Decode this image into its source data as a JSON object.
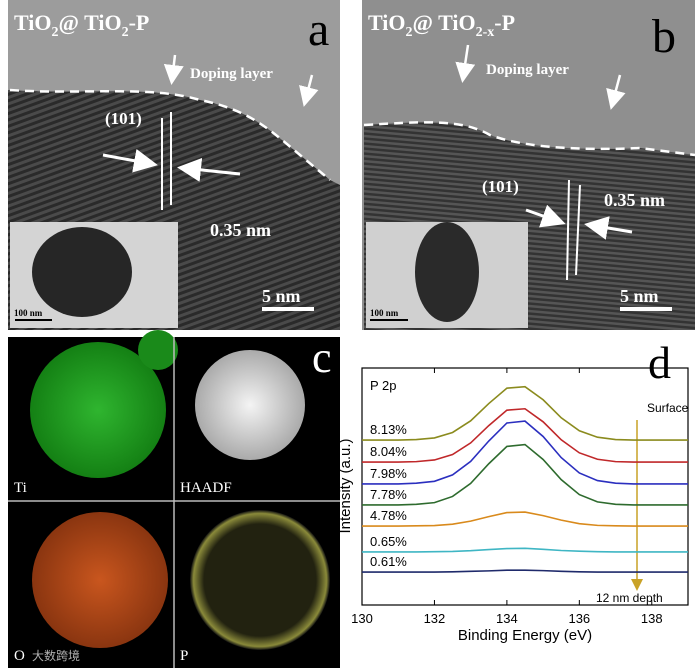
{
  "panel_a": {
    "letter": "a",
    "title_parts": [
      "TiO",
      "2",
      "@ TiO",
      "2",
      "-P"
    ],
    "annotation": "Doping layer",
    "plane": "(101)",
    "spacing": "0.35 nm",
    "scale_bar": "5 nm",
    "inset_scale_bar": "100 nm"
  },
  "panel_b": {
    "letter": "b",
    "title_parts": [
      "TiO",
      "2",
      "@ TiO",
      "2-x",
      "-P"
    ],
    "annotation": "Doping layer",
    "plane": "(101)",
    "spacing": "0.35 nm",
    "scale_bar": "5 nm",
    "inset_scale_bar": "100 nm"
  },
  "panel_c": {
    "letter": "c",
    "maps": [
      "Ti",
      "HAADF",
      "O",
      "P"
    ]
  },
  "chart_data": {
    "type": "line",
    "panel_label": "d",
    "spectrum_label": "P 2p",
    "annotations": [
      "Surface",
      "12 nm depth"
    ],
    "x_label": "Binding Energy (eV)",
    "y_label": "Intensity (a.u.)",
    "x": [
      130,
      130.5,
      131,
      131.5,
      132,
      132.5,
      133,
      133.5,
      134,
      134.5,
      135,
      135.5,
      136,
      136.5,
      137,
      137.5,
      138,
      138.5,
      139
    ],
    "xlim": [
      130,
      139
    ],
    "xticks": [
      130,
      132,
      134,
      136,
      138
    ],
    "ylim": [
      0,
      100
    ],
    "series": [
      {
        "name": "8.13%",
        "color": "#8b8b1e",
        "values": [
          69.6,
          69.6,
          69.6,
          69.8,
          70.5,
          72.8,
          77.7,
          85.0,
          91.5,
          92.1,
          86.6,
          79.0,
          73.5,
          70.8,
          69.8,
          69.6,
          69.6,
          69.6,
          69.6
        ]
      },
      {
        "name": "8.04%",
        "color": "#c0282a",
        "values": [
          60.3,
          60.3,
          60.3,
          60.5,
          61.2,
          63.5,
          68.4,
          75.7,
          82.2,
          82.8,
          77.3,
          69.7,
          64.2,
          61.5,
          60.5,
          60.3,
          60.3,
          60.3,
          60.3
        ]
      },
      {
        "name": "7.98%",
        "color": "#2b2fbf",
        "values": [
          51.1,
          51.1,
          51.1,
          51.4,
          52.2,
          54.9,
          60.6,
          69.2,
          76.8,
          77.6,
          71.1,
          62.2,
          55.7,
          52.5,
          51.4,
          51.1,
          51.1,
          51.1,
          51.1
        ]
      },
      {
        "name": "7.78%",
        "color": "#2e6b2e",
        "values": [
          42.2,
          42.2,
          42.2,
          42.5,
          43.2,
          45.8,
          51.3,
          59.6,
          66.9,
          67.7,
          61.4,
          52.9,
          46.6,
          43.5,
          42.5,
          42.2,
          42.2,
          42.2,
          42.2
        ]
      },
      {
        "name": "4.78%",
        "color": "#d98a1c",
        "values": [
          33.3,
          33.3,
          33.3,
          33.4,
          33.5,
          34.1,
          35.4,
          37.3,
          39.0,
          39.2,
          37.7,
          35.8,
          34.3,
          33.6,
          33.4,
          33.3,
          33.3,
          33.3,
          33.3
        ]
      },
      {
        "name": "0.65%",
        "color": "#3fb6c4",
        "values": [
          22.4,
          22.4,
          22.4,
          22.4,
          22.5,
          22.6,
          22.9,
          23.4,
          23.8,
          23.9,
          23.5,
          23.0,
          22.7,
          22.5,
          22.4,
          22.4,
          22.4,
          22.4,
          22.4
        ]
      },
      {
        "name": "0.61%",
        "color": "#1f2a6b",
        "values": [
          13.9,
          13.9,
          13.9,
          13.9,
          13.9,
          14.0,
          14.2,
          14.4,
          14.7,
          14.7,
          14.5,
          14.2,
          14.0,
          13.9,
          13.9,
          13.9,
          13.9,
          13.9,
          13.9
        ]
      }
    ]
  },
  "watermark": "大数跨境"
}
